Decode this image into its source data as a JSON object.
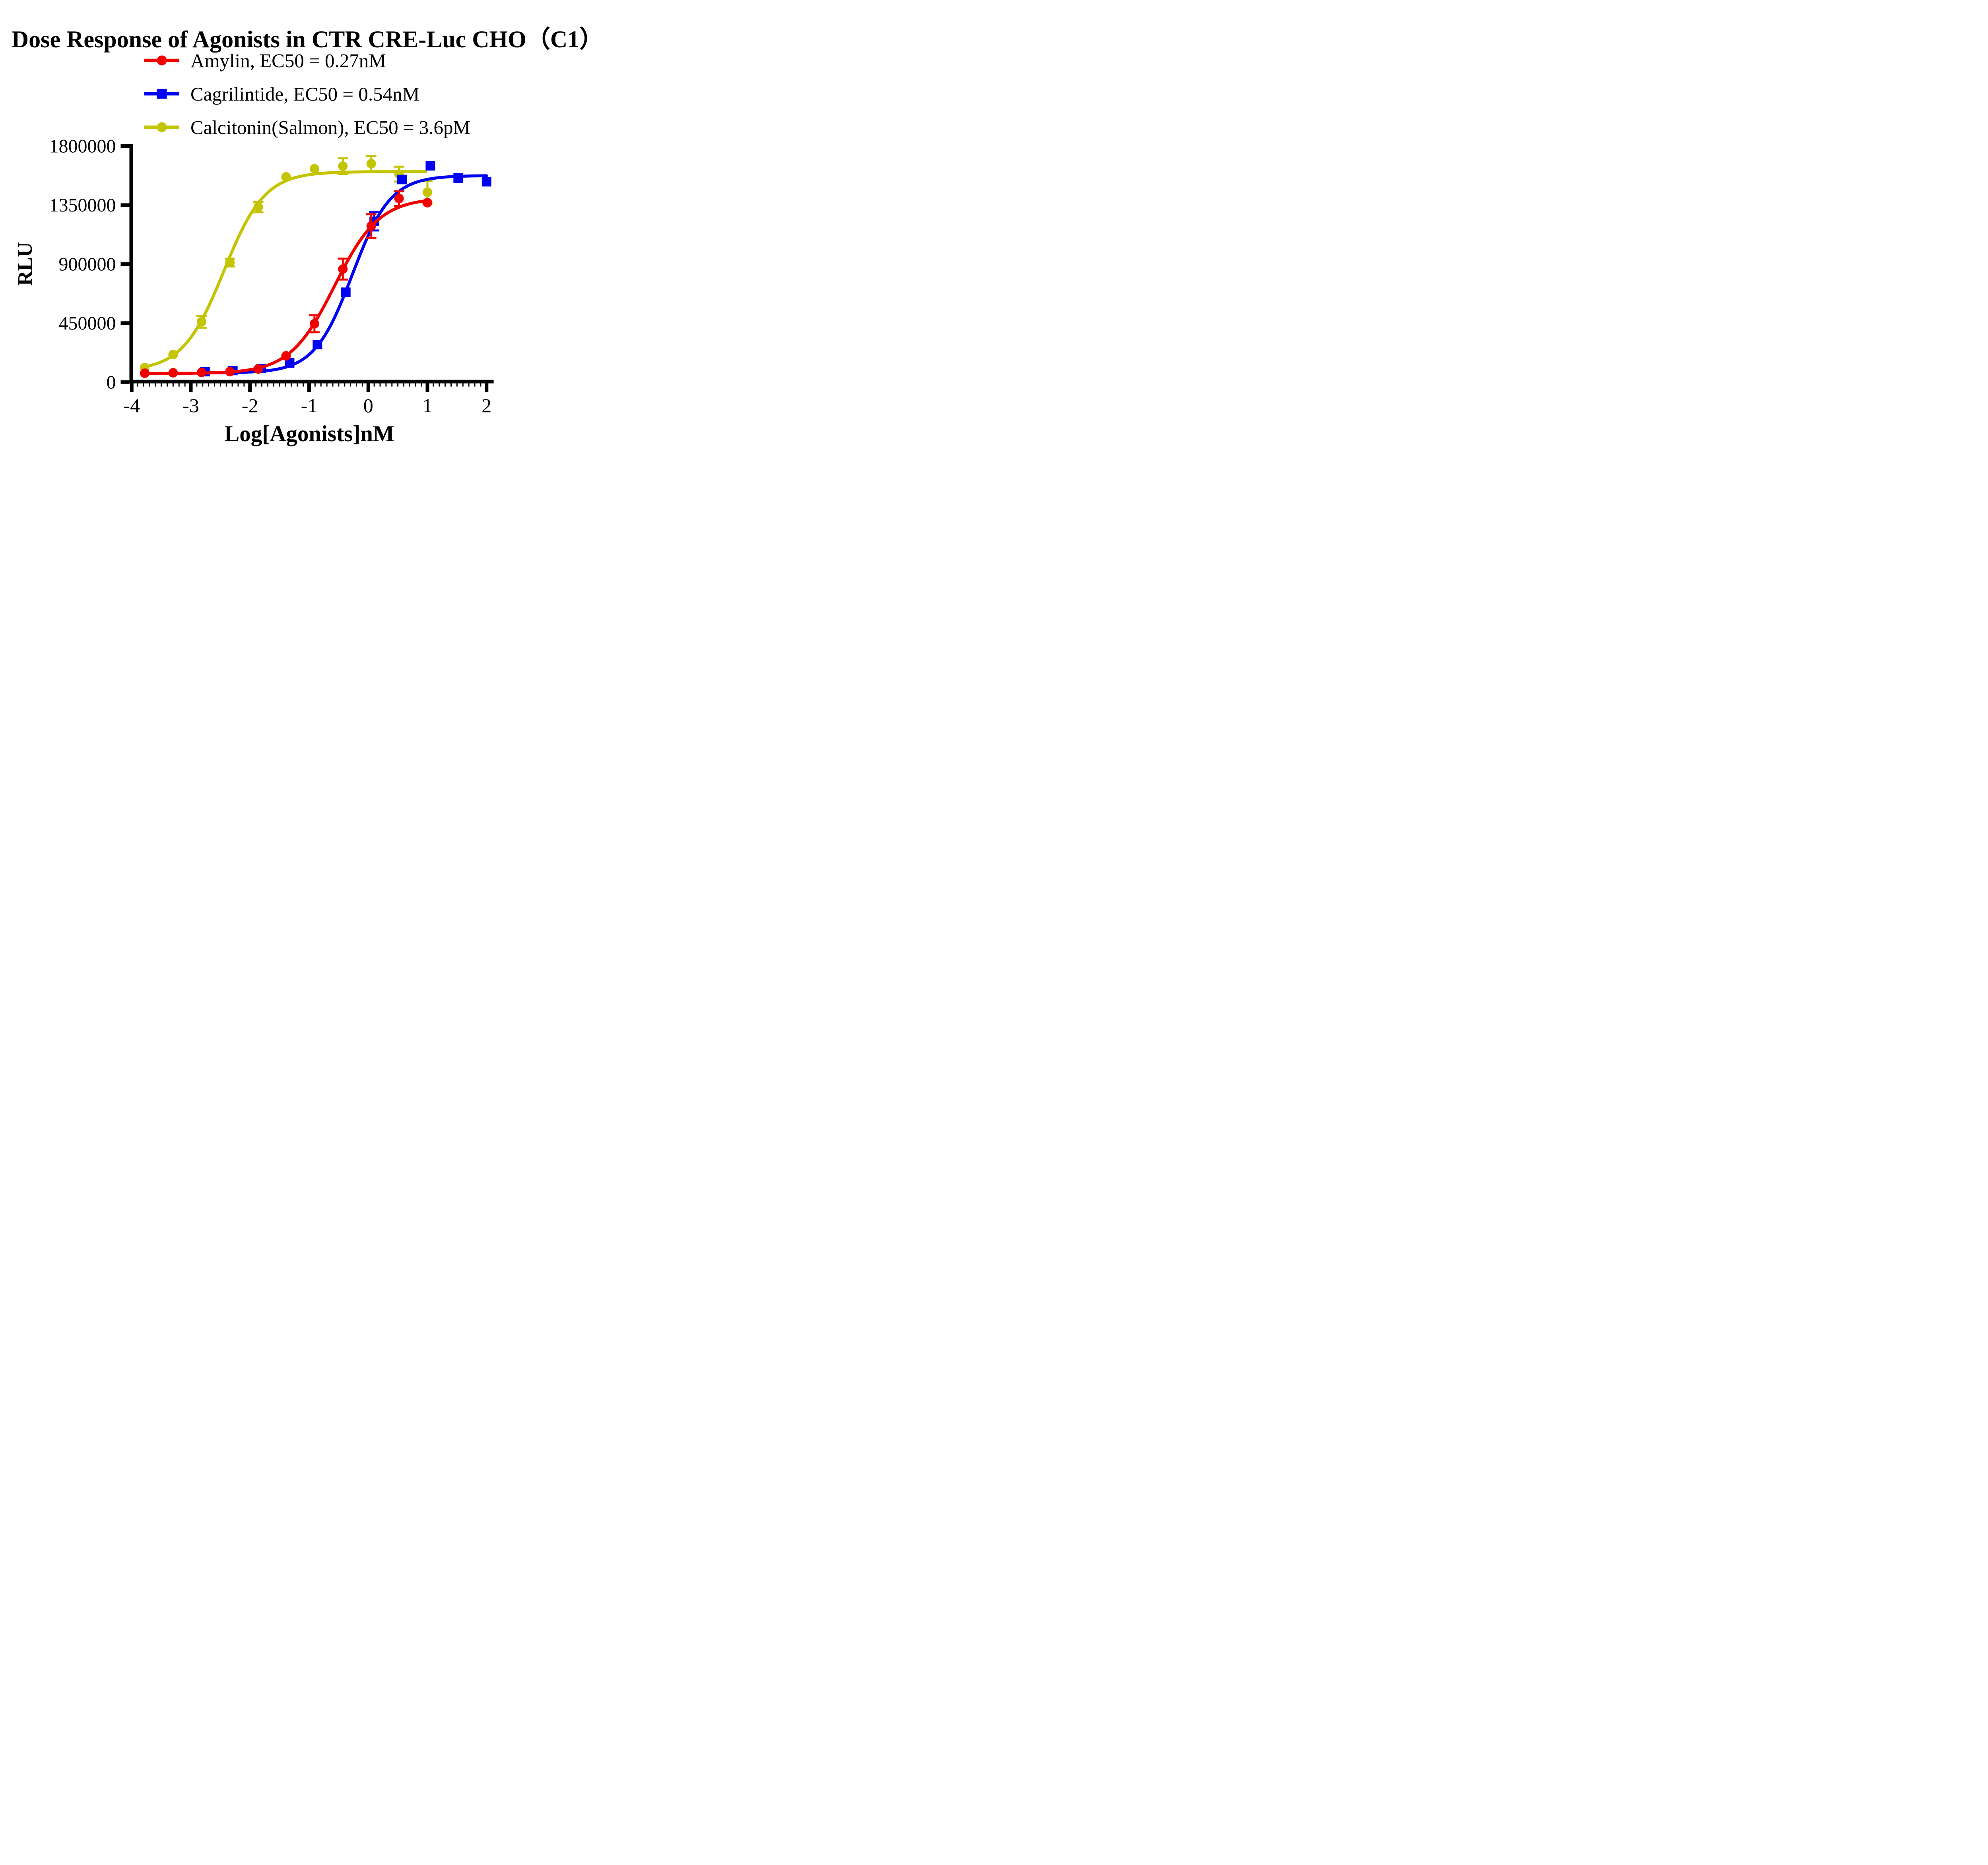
{
  "figure": {
    "background": "#ffffff",
    "text_color": "#000000"
  },
  "chart_data": {
    "type": "scatter",
    "title": "Dose Response of Agonists in CTR CRE-Luc CHO（C1）",
    "xlabel": "Log[Agonists]nM",
    "ylabel": "RLU",
    "xlim": [
      -4,
      2.12
    ],
    "ylim": [
      0,
      1800000
    ],
    "x_ticks": [
      -4,
      -3,
      -2,
      -1,
      0,
      1,
      2
    ],
    "x_tick_labels": [
      "-4",
      "-3",
      "-2",
      "-1",
      "0",
      "1",
      "2"
    ],
    "x_minor_tick_step": 0.1,
    "y_ticks": [
      0,
      450000,
      900000,
      1350000,
      1800000
    ],
    "y_tick_labels": [
      "0",
      "450000",
      "900000",
      "1350000",
      "1800000"
    ],
    "grid": false,
    "legend_position": "top-left-below-title",
    "curve_model": "four-parameter-logistic",
    "series": [
      {
        "name": "Amylin",
        "ec50": "0.27nM",
        "label": "Amylin, EC50 = 0.27nM",
        "color": "#F20000",
        "marker": "circle",
        "x": [
          -3.78,
          -3.3,
          -2.82,
          -2.34,
          -1.86,
          -1.39,
          -0.91,
          -0.43,
          0.05,
          0.52,
          1.0
        ],
        "y": [
          68000,
          71000,
          74000,
          80000,
          100000,
          200000,
          445000,
          862000,
          1190000,
          1400000,
          1368000
        ],
        "err": [
          0,
          0,
          0,
          0,
          0,
          0,
          65000,
          80000,
          90000,
          55000,
          0
        ],
        "fit": {
          "bottom": 65000,
          "top": 1405000,
          "logec50": -0.5686,
          "hill": 1.15,
          "range": [
            -3.78,
            1.0
          ]
        }
      },
      {
        "name": "Cagrilintide",
        "ec50": "0.54nM",
        "label": "Cagrilintide, EC50 = 0.54nM",
        "color": "#0000F2",
        "marker": "square",
        "x": [
          -2.76,
          -2.29,
          -1.81,
          -1.33,
          -0.86,
          -0.38,
          0.1,
          0.57,
          1.05,
          1.52,
          2.0
        ],
        "y": [
          80000,
          88000,
          104000,
          146000,
          286000,
          685000,
          1226000,
          1545000,
          1650000,
          1556000,
          1528000
        ],
        "err": [
          0,
          0,
          0,
          0,
          0,
          0,
          70000,
          0,
          0,
          0,
          0
        ],
        "fit": {
          "bottom": 70000,
          "top": 1575000,
          "logec50": -0.2676,
          "hill": 1.35,
          "range": [
            -2.76,
            2.0
          ]
        }
      },
      {
        "name": "Calcitonin(Salmon)",
        "ec50": "3.6pM",
        "label": "Calcitonin(Salmon),  EC50 = 3.6pM",
        "color": "#C4C400",
        "marker": "circle",
        "x": [
          -3.78,
          -3.3,
          -2.82,
          -2.34,
          -1.86,
          -1.39,
          -0.91,
          -0.43,
          0.05,
          0.52,
          1.0
        ],
        "y": [
          110000,
          210000,
          460000,
          912000,
          1335000,
          1565000,
          1627000,
          1647000,
          1666000,
          1586000,
          1448000
        ],
        "err": [
          0,
          0,
          45000,
          30000,
          40000,
          0,
          0,
          60000,
          58000,
          57000,
          85000
        ],
        "fit": {
          "bottom": 85000,
          "top": 1605000,
          "logec50": -2.4437,
          "hill": 1.25,
          "range": [
            -3.78,
            0.97
          ]
        }
      }
    ]
  }
}
